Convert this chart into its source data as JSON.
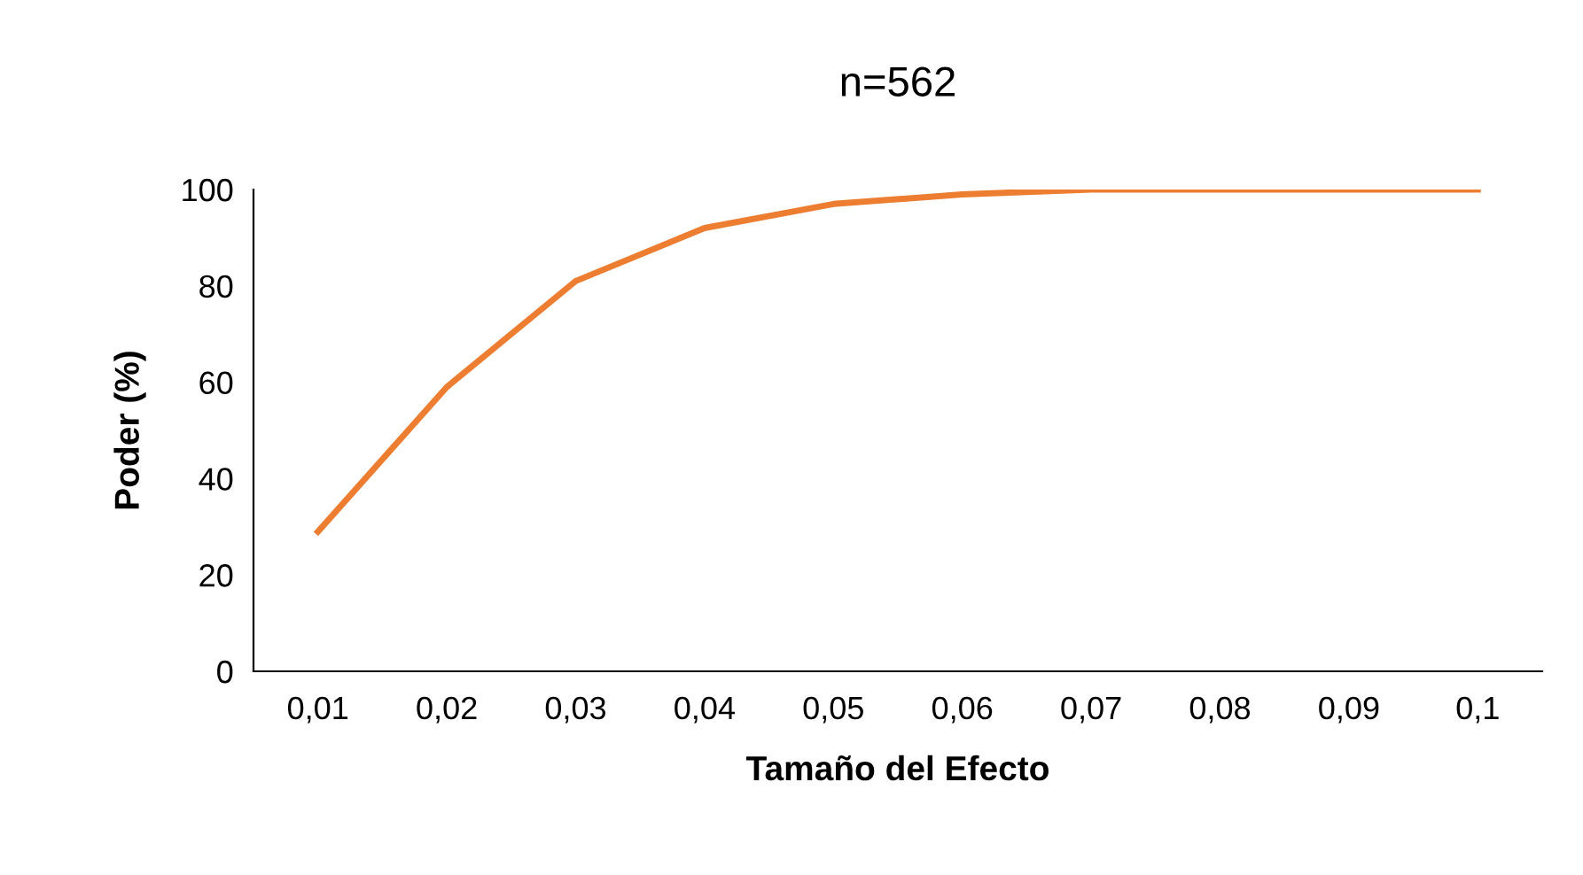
{
  "chart_data": {
    "type": "line",
    "title": "n=562",
    "xlabel": "Tamaño del Efecto",
    "ylabel": "Poder (%)",
    "categories": [
      "0,01",
      "0,02",
      "0,03",
      "0,04",
      "0,05",
      "0,06",
      "0,07",
      "0,08",
      "0,09",
      "0,1"
    ],
    "series": [
      {
        "color": "#ed7d31",
        "values": [
          29,
          59,
          81,
          92,
          97,
          99,
          100,
          100,
          100,
          100
        ]
      }
    ],
    "ylim": [
      0,
      100
    ],
    "yticks": [
      0,
      20,
      40,
      60,
      80,
      100
    ],
    "grid": false,
    "legend": false,
    "marker": "none",
    "line_style": "solid"
  }
}
